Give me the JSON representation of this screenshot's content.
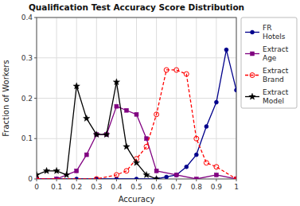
{
  "chart_data": {
    "type": "line",
    "title": "Qualification Test Accuracy Score Distribution",
    "xlabel": "Accuracy",
    "ylabel": "Fraction of Workers",
    "xlim": [
      0,
      1.0
    ],
    "ylim": [
      0,
      0.4
    ],
    "xticks": [
      0,
      0.1,
      0.2,
      0.3,
      0.4,
      0.5,
      0.6,
      0.7,
      0.8,
      0.9,
      1
    ],
    "yticks": [
      0,
      0.1,
      0.2,
      0.3,
      0.4
    ],
    "grid": true,
    "legend": "right",
    "series": [
      {
        "name": "FR\nHotels",
        "color": "#00008B",
        "marker": "circle",
        "line_style": "solid",
        "x": [
          0.0,
          0.1,
          0.2,
          0.3,
          0.4,
          0.5,
          0.6,
          0.65,
          0.7,
          0.75,
          0.8,
          0.85,
          0.9,
          0.95,
          1.0
        ],
        "values": [
          0.0,
          0.0,
          0.0,
          0.0,
          0.0,
          0.0,
          0.0,
          0.005,
          0.01,
          0.03,
          0.06,
          0.13,
          0.19,
          0.32,
          0.22
        ]
      },
      {
        "name": "Extract\nAge",
        "color": "#800080",
        "marker": "square",
        "line_style": "solid",
        "x": [
          0.0,
          0.1,
          0.2,
          0.25,
          0.3,
          0.35,
          0.4,
          0.45,
          0.5,
          0.55,
          0.6,
          0.7,
          0.8,
          0.9,
          1.0
        ],
        "values": [
          0.0,
          0.0,
          0.02,
          0.06,
          0.11,
          0.11,
          0.18,
          0.17,
          0.16,
          0.1,
          0.02,
          0.01,
          0.0,
          0.01,
          0.0
        ]
      },
      {
        "name": "Extract\nBrand",
        "color": "#FF0000",
        "marker": "open-circle",
        "line_style": "dashed",
        "x": [
          0.0,
          0.3,
          0.4,
          0.45,
          0.5,
          0.55,
          0.6,
          0.65,
          0.7,
          0.75,
          0.8,
          0.85,
          0.9,
          1.0
        ],
        "values": [
          0.0,
          0.0,
          0.01,
          0.02,
          0.05,
          0.08,
          0.16,
          0.27,
          0.27,
          0.26,
          0.1,
          0.04,
          0.03,
          0.0
        ]
      },
      {
        "name": "Extract\nModel",
        "color": "#000000",
        "marker": "star",
        "line_style": "solid",
        "x": [
          0.0,
          0.05,
          0.1,
          0.15,
          0.2,
          0.25,
          0.3,
          0.35,
          0.4,
          0.45,
          0.5,
          0.55,
          0.6
        ],
        "values": [
          0.01,
          0.02,
          0.02,
          0.01,
          0.23,
          0.15,
          0.11,
          0.11,
          0.24,
          0.08,
          0.04,
          0.01,
          0.0
        ]
      }
    ]
  }
}
